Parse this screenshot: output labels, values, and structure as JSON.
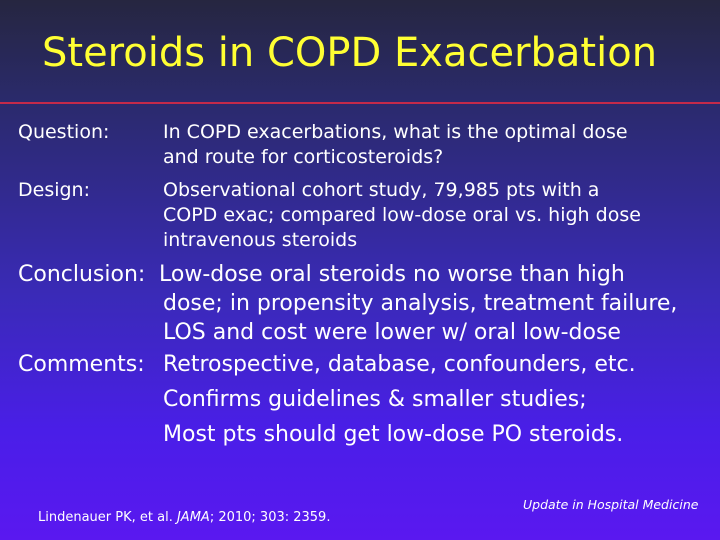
{
  "title": "Steroids in COPD Exacerbation",
  "question": {
    "label": "Question:",
    "lines": [
      "In COPD exacerbations, what is the optimal dose",
      "and route for corticosteroids?"
    ]
  },
  "design": {
    "label": "Design:",
    "lines": [
      "Observational cohort study, 79,985 pts with a",
      "COPD exac; compared low-dose oral vs. high dose",
      "intravenous steroids"
    ]
  },
  "conclusion": {
    "label": "Conclusion:",
    "lines": [
      "Low-dose oral steroids no worse than high",
      "dose; in propensity analysis, treatment failure,",
      "LOS and cost were lower w/ oral low-dose"
    ]
  },
  "comments": {
    "label": "Comments:",
    "lines": [
      "Retrospective, database, confounders, etc.",
      "Confirms guidelines & smaller studies;",
      "Most pts should get low-dose PO steroids."
    ]
  },
  "citation": {
    "authors": "Lindenauer PK, et al. ",
    "journal": "JAMA",
    "details": "; 2010; 303: 2359."
  },
  "footer": "Update in Hospital Medicine",
  "colors": {
    "title": "#ffff33",
    "rule": "#c42a4a"
  }
}
